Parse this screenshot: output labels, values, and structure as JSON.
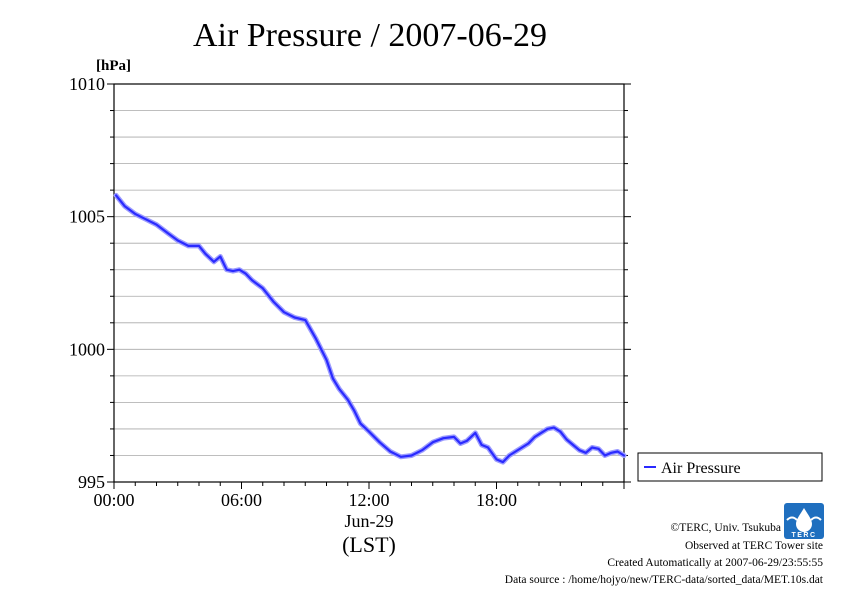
{
  "chart_data": {
    "type": "line",
    "title": "Air Pressure / 2007-06-29",
    "ylabel": "[hPa]",
    "xlabel": "(LST)",
    "date_label": "Jun-29",
    "xlim": [
      0,
      24
    ],
    "ylim": [
      995,
      1010
    ],
    "y_ticks": [
      "995",
      "1000",
      "1005",
      "1010"
    ],
    "x_ticks": [
      {
        "x": 0,
        "label": "00:00"
      },
      {
        "x": 6,
        "label": "06:00"
      },
      {
        "x": 12,
        "label": "12:00"
      },
      {
        "x": 18,
        "label": "18:00"
      }
    ],
    "grid": true,
    "legend_position": "right",
    "series": [
      {
        "name": "Air Pressure",
        "color": "#2a2aff",
        "x": [
          0.1,
          0.5,
          1.0,
          1.5,
          2.0,
          2.5,
          3.0,
          3.5,
          4.0,
          4.3,
          4.7,
          5.0,
          5.3,
          5.6,
          5.9,
          6.2,
          6.5,
          7.0,
          7.5,
          8.0,
          8.5,
          9.0,
          9.5,
          10.0,
          10.3,
          10.6,
          11.0,
          11.3,
          11.6,
          12.0,
          12.5,
          13.0,
          13.5,
          14.0,
          14.5,
          15.0,
          15.5,
          16.0,
          16.3,
          16.6,
          17.0,
          17.3,
          17.6,
          18.0,
          18.3,
          18.6,
          18.9,
          19.2,
          19.5,
          19.8,
          20.1,
          20.4,
          20.7,
          21.0,
          21.3,
          21.6,
          21.9,
          22.2,
          22.5,
          22.8,
          23.1,
          23.4,
          23.7,
          24.0
        ],
        "y": [
          1005.8,
          1005.4,
          1005.1,
          1004.9,
          1004.7,
          1004.4,
          1004.1,
          1003.9,
          1003.9,
          1003.6,
          1003.3,
          1003.5,
          1003.0,
          1002.95,
          1003.0,
          1002.85,
          1002.6,
          1002.3,
          1001.8,
          1001.4,
          1001.2,
          1001.1,
          1000.4,
          999.6,
          998.9,
          998.5,
          998.1,
          997.7,
          997.2,
          996.9,
          996.5,
          996.15,
          995.95,
          996.0,
          996.2,
          996.5,
          996.65,
          996.7,
          996.45,
          996.55,
          996.85,
          996.4,
          996.3,
          995.85,
          995.75,
          996.0,
          996.15,
          996.3,
          996.45,
          996.7,
          996.85,
          997.0,
          997.05,
          996.9,
          996.6,
          996.4,
          996.2,
          996.1,
          996.3,
          996.25,
          996.0,
          996.1,
          996.15,
          996.0
        ]
      }
    ]
  },
  "credits": {
    "copyright": "©TERC, Univ. Tsukuba",
    "observed": "Observed at TERC Tower site",
    "created": "Created Automatically at 2007-06-29/23:55:55",
    "source": "Data source : /home/hojyo/new/TERC-data/sorted_data/MET.10s.dat",
    "logo_text": "TERC"
  }
}
